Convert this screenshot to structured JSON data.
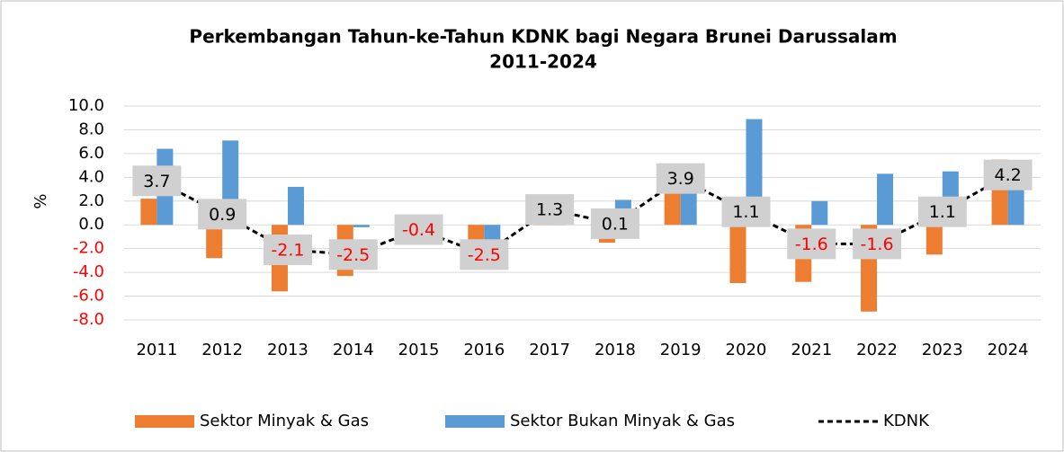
{
  "chart_data": {
    "type": "bar_line",
    "title": [
      "Perkembangan Tahun-ke-Tahun KDNK bagi Negara Brunei Darussalam",
      "2011-2024"
    ],
    "y_label": "%",
    "categories": [
      "2011",
      "2012",
      "2013",
      "2014",
      "2015",
      "2016",
      "2017",
      "2018",
      "2019",
      "2020",
      "2021",
      "2022",
      "2023",
      "2024"
    ],
    "series": [
      {
        "name": "Sektor Minyak & Gas",
        "color": "#ed7d31",
        "kind": "bar",
        "values": [
          2.2,
          -2.8,
          -5.6,
          -4.3,
          -0.5,
          -3.0,
          0.5,
          -1.5,
          2.8,
          -4.9,
          -4.8,
          -7.3,
          -2.5,
          5.5
        ]
      },
      {
        "name": "Sektor Bukan Minyak & Gas",
        "color": "#5b9bd5",
        "kind": "bar",
        "values": [
          6.4,
          7.1,
          3.2,
          -0.2,
          -0.3,
          -1.8,
          1.5,
          2.1,
          4.1,
          8.9,
          2.0,
          4.3,
          4.5,
          3.1
        ]
      },
      {
        "name": "KDNK",
        "color": "#000000",
        "kind": "line",
        "labels": true,
        "values": [
          3.7,
          0.9,
          -2.1,
          -2.5,
          -0.4,
          -2.5,
          1.3,
          0.1,
          3.9,
          1.1,
          -1.6,
          -1.6,
          1.1,
          4.2
        ]
      }
    ],
    "negative_color": "#ff0000",
    "ylim": [
      -8,
      10
    ],
    "yticks": [
      {
        "value": 10,
        "label": "10.0"
      },
      {
        "value": 8,
        "label": "8.0"
      },
      {
        "value": 6,
        "label": "6.0"
      },
      {
        "value": 4,
        "label": "4.0"
      },
      {
        "value": 2,
        "label": "2.0"
      },
      {
        "value": 0,
        "label": "0.0"
      },
      {
        "value": -2,
        "label": "-2.0"
      },
      {
        "value": -4,
        "label": "-4.0"
      },
      {
        "value": -6,
        "label": "-6.0"
      },
      {
        "value": -8,
        "label": "-8.0"
      }
    ],
    "grid": true,
    "legend": "bottom"
  }
}
